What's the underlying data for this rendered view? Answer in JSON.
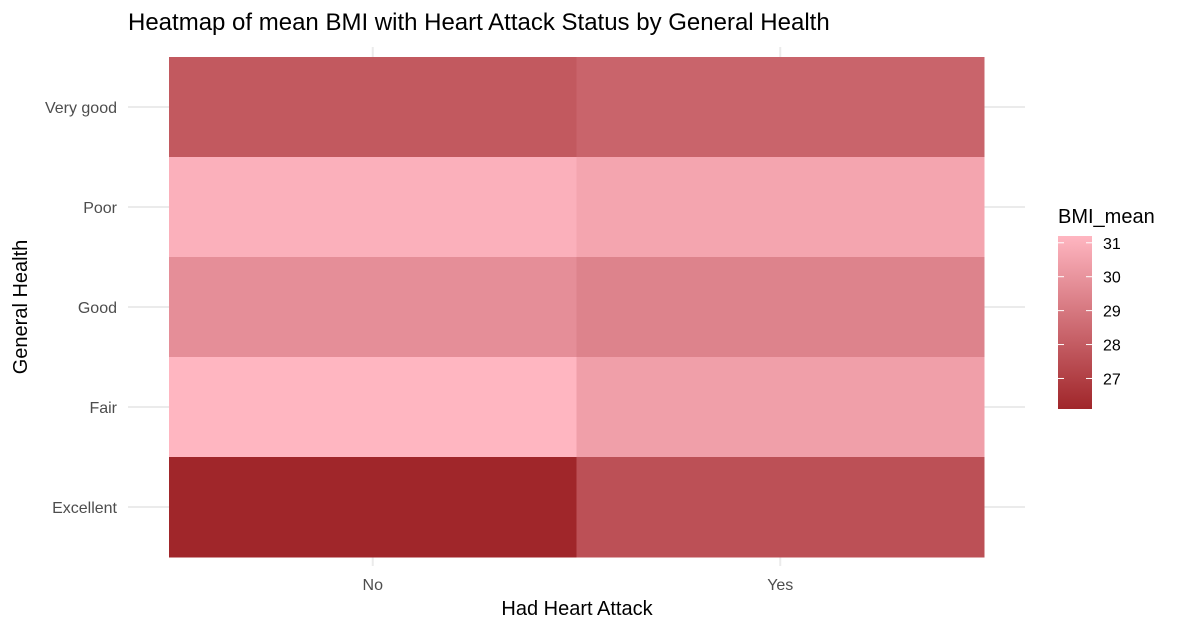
{
  "chart_data": {
    "type": "heatmap",
    "title": "Heatmap of mean BMI with Heart Attack Status by General Health",
    "xlabel": "Had Heart Attack",
    "ylabel": "General Health",
    "x_categories": [
      "No",
      "Yes"
    ],
    "y_categories": [
      "Excellent",
      "Fair",
      "Good",
      "Poor",
      "Very good"
    ],
    "values": [
      {
        "x": "No",
        "y": "Very good",
        "value": 27.9
      },
      {
        "x": "Yes",
        "y": "Very good",
        "value": 28.3
      },
      {
        "x": "No",
        "y": "Poor",
        "value": 31.0
      },
      {
        "x": "Yes",
        "y": "Poor",
        "value": 30.6
      },
      {
        "x": "No",
        "y": "Good",
        "value": 29.8
      },
      {
        "x": "Yes",
        "y": "Good",
        "value": 29.4
      },
      {
        "x": "No",
        "y": "Fair",
        "value": 31.2
      },
      {
        "x": "Yes",
        "y": "Fair",
        "value": 30.4
      },
      {
        "x": "No",
        "y": "Excellent",
        "value": 26.1
      },
      {
        "x": "Yes",
        "y": "Excellent",
        "value": 27.6
      }
    ],
    "legend": {
      "title": "BMI_mean",
      "ticks": [
        27,
        28,
        29,
        30,
        31
      ],
      "range": [
        26.1,
        31.2
      ],
      "low_color": "#a0262a",
      "high_color": "#ffb6c1",
      "placement": "right"
    },
    "grid": true
  }
}
